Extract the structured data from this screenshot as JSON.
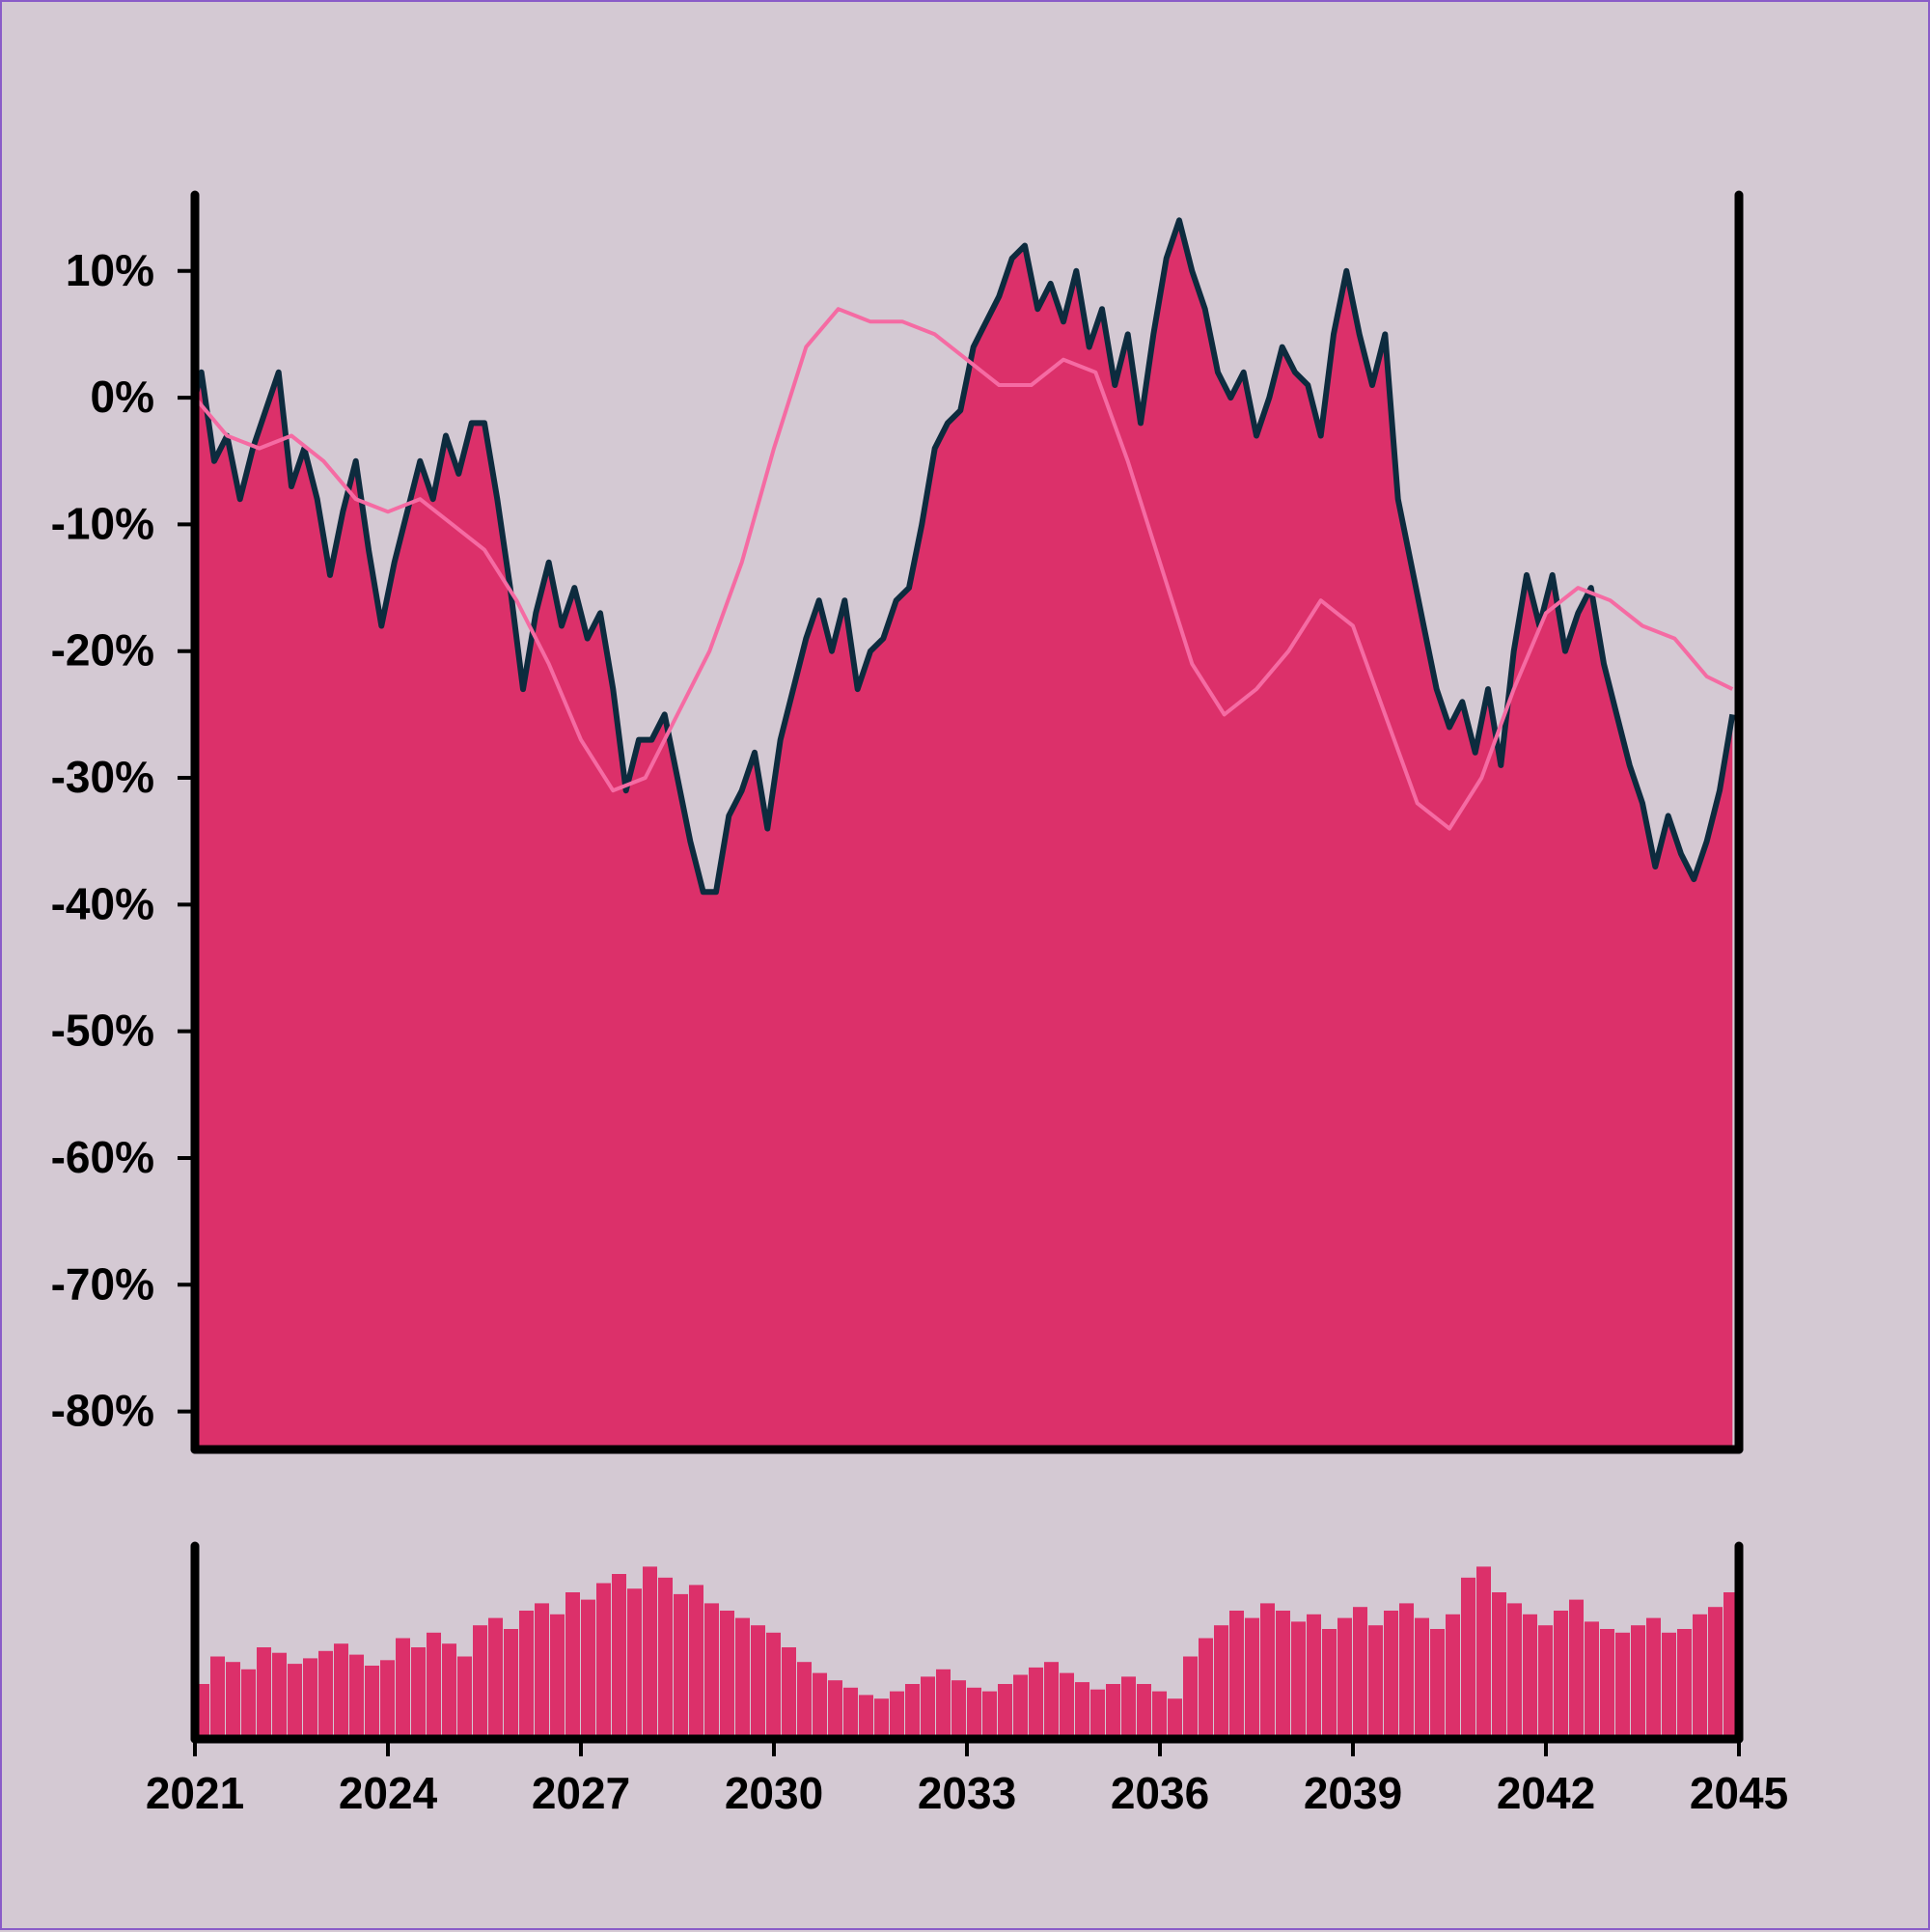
{
  "chart_data": {
    "type": "area",
    "x_axis": {
      "range": [
        2021,
        2045
      ],
      "ticks": [
        "2021",
        "2024",
        "2027",
        "2030",
        "2033",
        "2036",
        "2039",
        "2042",
        "2045"
      ]
    },
    "y_axis": {
      "range": [
        -83,
        16
      ],
      "ticks": [
        "10%",
        "0%",
        "-10%",
        "-20%",
        "-30%",
        "-40%",
        "-50%",
        "-60%",
        "-70%",
        "-80%"
      ],
      "tick_values": [
        10,
        0,
        -10,
        -20,
        -30,
        -40,
        -50,
        -60,
        -70,
        -80
      ]
    },
    "series": [
      {
        "kind": "area",
        "color": "#dc306a",
        "edge_color": "#0d2b3e",
        "points": [
          [
            2021.0,
            0
          ],
          [
            2021.1,
            2
          ],
          [
            2021.3,
            -5
          ],
          [
            2021.5,
            -3
          ],
          [
            2021.7,
            -8
          ],
          [
            2021.9,
            -4
          ],
          [
            2022.1,
            -1
          ],
          [
            2022.3,
            2
          ],
          [
            2022.5,
            -7
          ],
          [
            2022.7,
            -4
          ],
          [
            2022.9,
            -8
          ],
          [
            2023.1,
            -14
          ],
          [
            2023.3,
            -9
          ],
          [
            2023.5,
            -5
          ],
          [
            2023.7,
            -12
          ],
          [
            2023.9,
            -18
          ],
          [
            2024.1,
            -13
          ],
          [
            2024.3,
            -9
          ],
          [
            2024.5,
            -5
          ],
          [
            2024.7,
            -8
          ],
          [
            2024.9,
            -3
          ],
          [
            2025.1,
            -6
          ],
          [
            2025.3,
            -2
          ],
          [
            2025.5,
            -2
          ],
          [
            2025.7,
            -8
          ],
          [
            2025.9,
            -15
          ],
          [
            2026.1,
            -23
          ],
          [
            2026.3,
            -17
          ],
          [
            2026.5,
            -13
          ],
          [
            2026.7,
            -18
          ],
          [
            2026.9,
            -15
          ],
          [
            2027.1,
            -19
          ],
          [
            2027.3,
            -17
          ],
          [
            2027.5,
            -23
          ],
          [
            2027.7,
            -31
          ],
          [
            2027.9,
            -27
          ],
          [
            2028.1,
            -27
          ],
          [
            2028.3,
            -25
          ],
          [
            2028.5,
            -30
          ],
          [
            2028.7,
            -35
          ],
          [
            2028.9,
            -39
          ],
          [
            2029.1,
            -39
          ],
          [
            2029.3,
            -33
          ],
          [
            2029.5,
            -31
          ],
          [
            2029.7,
            -28
          ],
          [
            2029.9,
            -34
          ],
          [
            2030.1,
            -27
          ],
          [
            2030.3,
            -23
          ],
          [
            2030.5,
            -19
          ],
          [
            2030.7,
            -16
          ],
          [
            2030.9,
            -20
          ],
          [
            2031.1,
            -16
          ],
          [
            2031.3,
            -23
          ],
          [
            2031.5,
            -20
          ],
          [
            2031.7,
            -19
          ],
          [
            2031.9,
            -16
          ],
          [
            2032.1,
            -15
          ],
          [
            2032.3,
            -10
          ],
          [
            2032.5,
            -4
          ],
          [
            2032.7,
            -2
          ],
          [
            2032.9,
            -1
          ],
          [
            2033.1,
            4
          ],
          [
            2033.3,
            6
          ],
          [
            2033.5,
            8
          ],
          [
            2033.7,
            11
          ],
          [
            2033.9,
            12
          ],
          [
            2034.1,
            7
          ],
          [
            2034.3,
            9
          ],
          [
            2034.5,
            6
          ],
          [
            2034.7,
            10
          ],
          [
            2034.9,
            4
          ],
          [
            2035.1,
            7
          ],
          [
            2035.3,
            1
          ],
          [
            2035.5,
            5
          ],
          [
            2035.7,
            -2
          ],
          [
            2035.9,
            5
          ],
          [
            2036.1,
            11
          ],
          [
            2036.3,
            14
          ],
          [
            2036.5,
            10
          ],
          [
            2036.7,
            7
          ],
          [
            2036.9,
            2
          ],
          [
            2037.1,
            0
          ],
          [
            2037.3,
            2
          ],
          [
            2037.5,
            -3
          ],
          [
            2037.7,
            0
          ],
          [
            2037.9,
            4
          ],
          [
            2038.1,
            2
          ],
          [
            2038.3,
            1
          ],
          [
            2038.5,
            -3
          ],
          [
            2038.7,
            5
          ],
          [
            2038.9,
            10
          ],
          [
            2039.1,
            5
          ],
          [
            2039.3,
            1
          ],
          [
            2039.5,
            5
          ],
          [
            2039.7,
            -8
          ],
          [
            2039.9,
            -13
          ],
          [
            2040.1,
            -18
          ],
          [
            2040.3,
            -23
          ],
          [
            2040.5,
            -26
          ],
          [
            2040.7,
            -24
          ],
          [
            2040.9,
            -28
          ],
          [
            2041.1,
            -23
          ],
          [
            2041.3,
            -29
          ],
          [
            2041.5,
            -20
          ],
          [
            2041.7,
            -14
          ],
          [
            2041.9,
            -18
          ],
          [
            2042.1,
            -14
          ],
          [
            2042.3,
            -20
          ],
          [
            2042.5,
            -17
          ],
          [
            2042.7,
            -15
          ],
          [
            2042.9,
            -21
          ],
          [
            2043.1,
            -25
          ],
          [
            2043.3,
            -29
          ],
          [
            2043.5,
            -32
          ],
          [
            2043.7,
            -37
          ],
          [
            2043.9,
            -33
          ],
          [
            2044.1,
            -36
          ],
          [
            2044.3,
            -38
          ],
          [
            2044.5,
            -35
          ],
          [
            2044.7,
            -31
          ],
          [
            2044.9,
            -25
          ]
        ]
      },
      {
        "kind": "line",
        "color": "#f56ba3",
        "points": [
          [
            2021.0,
            0
          ],
          [
            2021.5,
            -3
          ],
          [
            2022.0,
            -4
          ],
          [
            2022.5,
            -3
          ],
          [
            2023.0,
            -5
          ],
          [
            2023.5,
            -8
          ],
          [
            2024.0,
            -9
          ],
          [
            2024.5,
            -8
          ],
          [
            2025.0,
            -10
          ],
          [
            2025.5,
            -12
          ],
          [
            2026.0,
            -16
          ],
          [
            2026.5,
            -21
          ],
          [
            2027.0,
            -27
          ],
          [
            2027.5,
            -31
          ],
          [
            2028.0,
            -30
          ],
          [
            2028.5,
            -25
          ],
          [
            2029.0,
            -20
          ],
          [
            2029.5,
            -13
          ],
          [
            2030.0,
            -4
          ],
          [
            2030.5,
            4
          ],
          [
            2031.0,
            7
          ],
          [
            2031.5,
            6
          ],
          [
            2032.0,
            6
          ],
          [
            2032.5,
            5
          ],
          [
            2033.0,
            3
          ],
          [
            2033.5,
            1
          ],
          [
            2034.0,
            1
          ],
          [
            2034.5,
            3
          ],
          [
            2035.0,
            2
          ],
          [
            2035.5,
            -5
          ],
          [
            2036.0,
            -13
          ],
          [
            2036.5,
            -21
          ],
          [
            2037.0,
            -25
          ],
          [
            2037.5,
            -23
          ],
          [
            2038.0,
            -20
          ],
          [
            2038.5,
            -16
          ],
          [
            2039.0,
            -18
          ],
          [
            2039.5,
            -25
          ],
          [
            2040.0,
            -32
          ],
          [
            2040.5,
            -34
          ],
          [
            2041.0,
            -30
          ],
          [
            2041.5,
            -23
          ],
          [
            2042.0,
            -17
          ],
          [
            2042.5,
            -15
          ],
          [
            2043.0,
            -16
          ],
          [
            2043.5,
            -18
          ],
          [
            2044.0,
            -19
          ],
          [
            2044.5,
            -22
          ],
          [
            2044.9,
            -23
          ]
        ]
      }
    ],
    "volume_panel": {
      "type": "bar",
      "color": "#dc306a",
      "range": [
        0,
        1
      ],
      "x_range": [
        2021,
        2045
      ],
      "values": [
        0.3,
        0.45,
        0.42,
        0.38,
        0.5,
        0.47,
        0.41,
        0.44,
        0.48,
        0.52,
        0.46,
        0.4,
        0.43,
        0.55,
        0.5,
        0.58,
        0.52,
        0.45,
        0.62,
        0.66,
        0.6,
        0.7,
        0.74,
        0.68,
        0.8,
        0.76,
        0.85,
        0.9,
        0.82,
        0.94,
        0.88,
        0.79,
        0.84,
        0.74,
        0.7,
        0.66,
        0.62,
        0.58,
        0.5,
        0.42,
        0.36,
        0.32,
        0.28,
        0.24,
        0.22,
        0.26,
        0.3,
        0.34,
        0.38,
        0.32,
        0.28,
        0.26,
        0.3,
        0.35,
        0.39,
        0.42,
        0.36,
        0.31,
        0.27,
        0.3,
        0.34,
        0.3,
        0.26,
        0.22,
        0.45,
        0.55,
        0.62,
        0.7,
        0.66,
        0.74,
        0.7,
        0.64,
        0.68,
        0.6,
        0.66,
        0.72,
        0.62,
        0.7,
        0.74,
        0.66,
        0.6,
        0.68,
        0.88,
        0.94,
        0.8,
        0.74,
        0.68,
        0.62,
        0.7,
        0.76,
        0.64,
        0.6,
        0.58,
        0.62,
        0.66,
        0.58,
        0.6,
        0.68,
        0.72,
        0.8
      ]
    }
  }
}
